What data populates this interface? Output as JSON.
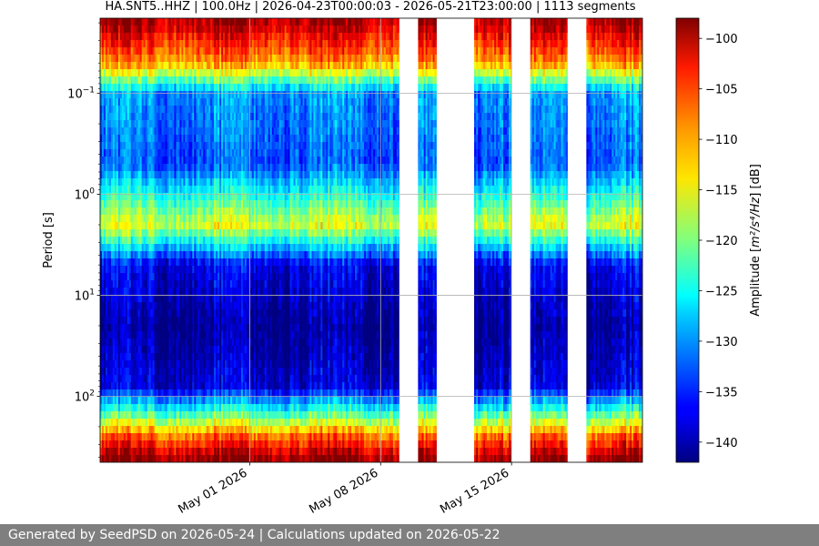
{
  "chart_data": {
    "type": "heatmap",
    "title": "HA.SNT5..HHZ | 100.0Hz | 2026-04-23T00:00:03 - 2026-05-21T23:00:00 | 1113 segments",
    "ylabel": "Period [s]",
    "yscale": "log",
    "yaxis_inverted": true,
    "ylim_s": [
      0.018,
      450
    ],
    "y_ticks": [
      {
        "value": 0.1,
        "base": "10",
        "exp": "−1"
      },
      {
        "value": 1,
        "base": "10",
        "exp": "0"
      },
      {
        "value": 10,
        "base": "10",
        "exp": "1"
      },
      {
        "value": 100,
        "base": "10",
        "exp": "2"
      }
    ],
    "xlim": [
      "2026-04-23",
      "2026-05-22"
    ],
    "x_ticks": [
      {
        "date": "2026-05-01",
        "label": "May 01 2026"
      },
      {
        "date": "2026-05-08",
        "label": "May 08 2026"
      },
      {
        "date": "2026-05-15",
        "label": "May 15 2026"
      }
    ],
    "grid": true,
    "colorbar": {
      "label_prefix": "Amplitude [",
      "label_math": "m²/s⁴/Hz",
      "label_suffix": "] [dB]",
      "vmin": -142,
      "vmax": -98,
      "colormap": "jet",
      "ticks": [
        "−100",
        "−105",
        "−110",
        "−115",
        "−120",
        "−125",
        "−130",
        "−135",
        "−140"
      ],
      "tick_values": [
        -100,
        -105,
        -110,
        -115,
        -120,
        -125,
        -130,
        -135,
        -140
      ]
    },
    "data_gaps": [
      {
        "start": "2026-05-09.0",
        "end": "2026-05-10.0"
      },
      {
        "start": "2026-05-11.0",
        "end": "2026-05-13.0"
      },
      {
        "start": "2026-05-15.0",
        "end": "2026-05-16.0"
      },
      {
        "start": "2026-05-18.0",
        "end": "2026-05-19.0"
      }
    ],
    "profile_db_by_period": [
      {
        "period_s": 0.02,
        "db": -100
      },
      {
        "period_s": 0.05,
        "db": -110
      },
      {
        "period_s": 0.1,
        "db": -130
      },
      {
        "period_s": 0.5,
        "db": -133
      },
      {
        "period_s": 2,
        "db": -116
      },
      {
        "period_s": 5,
        "db": -137
      },
      {
        "period_s": 20,
        "db": -141
      },
      {
        "period_s": 80,
        "db": -138
      },
      {
        "period_s": 150,
        "db": -122
      },
      {
        "period_s": 250,
        "db": -108
      },
      {
        "period_s": 400,
        "db": -99
      }
    ]
  },
  "footer": {
    "text": "Generated by SeedPSD on 2026-05-24 | Calculations updated on 2026-05-22"
  }
}
